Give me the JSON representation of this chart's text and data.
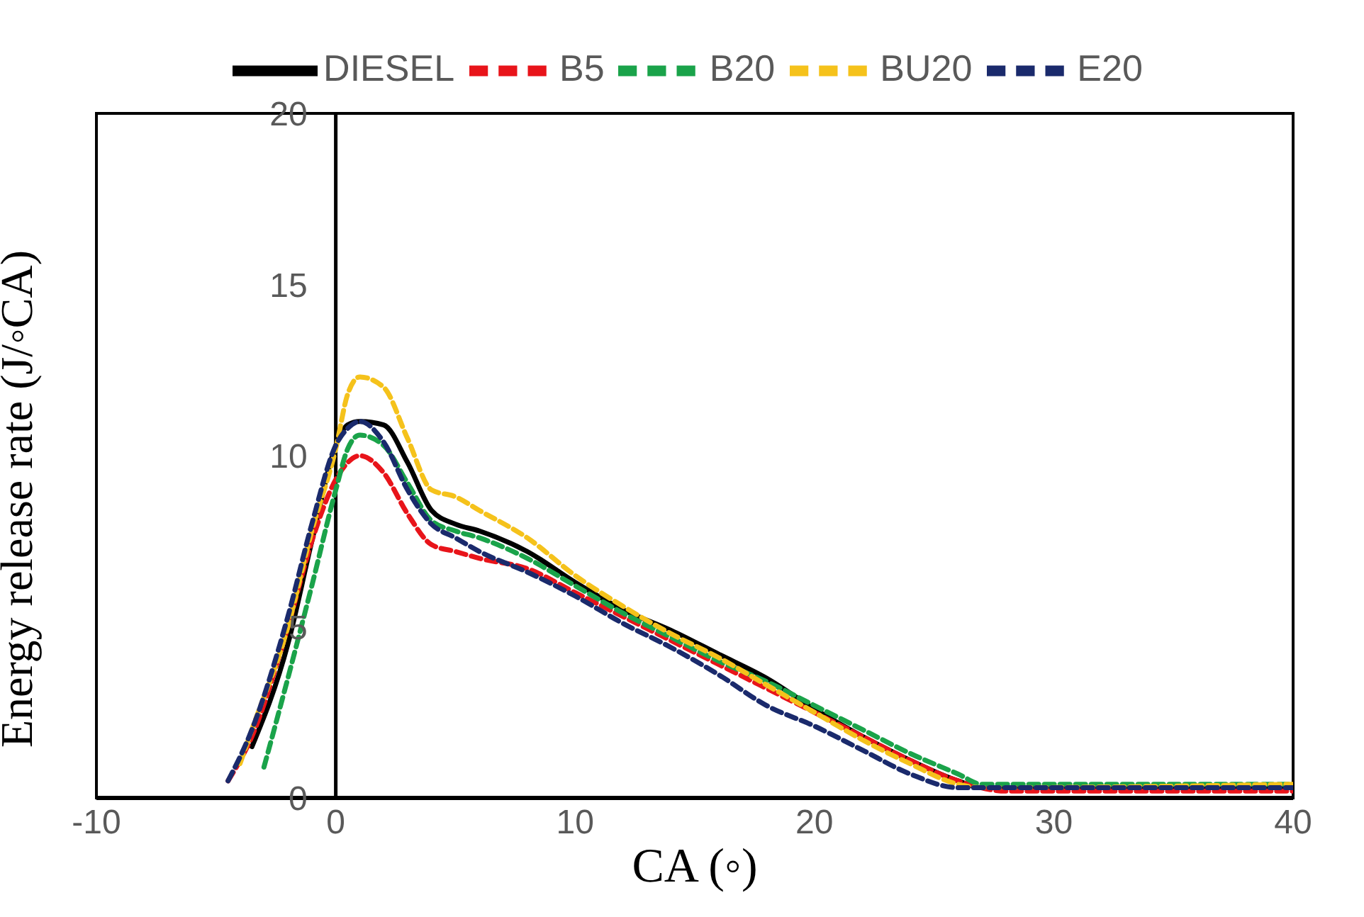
{
  "chart_data": {
    "type": "line",
    "xlabel": "CA (◦)",
    "ylabel": "Energy release rate (J/◦CA)",
    "xlim": [
      -10,
      40
    ],
    "xticks": [
      -10,
      0,
      10,
      20,
      30,
      40
    ],
    "ylim": [
      0,
      20
    ],
    "yticks": [
      0,
      5,
      10,
      15,
      20
    ],
    "grid": false,
    "legend": "top",
    "marker": "none",
    "series": [
      {
        "name": "DIESEL",
        "color": "#000000",
        "line_style": "solid",
        "x": [
          -3.5,
          -2,
          -1,
          0,
          0.5,
          1,
          2,
          3,
          4,
          5,
          6,
          8,
          10,
          12,
          14,
          16,
          18,
          20,
          22,
          24,
          26,
          27,
          30,
          40
        ],
        "values": [
          1.5,
          4.5,
          7.5,
          10.3,
          10.9,
          11.0,
          10.9,
          9.8,
          8.4,
          8.0,
          7.8,
          7.2,
          6.3,
          5.5,
          4.9,
          4.2,
          3.5,
          2.6,
          1.8,
          1.1,
          0.5,
          0.3,
          0.3,
          0.3
        ]
      },
      {
        "name": "B5",
        "color": "#e8141a",
        "line_style": "dashed",
        "x": [
          -4.5,
          -3.5,
          -2,
          -1,
          0,
          0.5,
          1,
          2,
          3,
          4,
          5,
          6,
          8,
          10,
          12,
          14,
          16,
          18,
          20,
          22,
          24,
          26,
          28,
          40
        ],
        "values": [
          0.5,
          1.8,
          5,
          7.5,
          9.3,
          9.8,
          10.0,
          9.5,
          8.3,
          7.4,
          7.2,
          7.0,
          6.7,
          6.0,
          5.3,
          4.6,
          3.9,
          3.2,
          2.5,
          1.8,
          1.1,
          0.5,
          0.2,
          0.2
        ]
      },
      {
        "name": "B20",
        "color": "#1aa34a",
        "line_style": "dashed",
        "x": [
          -3,
          -2,
          -1,
          0,
          0.5,
          1,
          2,
          3,
          4,
          5,
          6,
          8,
          10,
          12,
          14,
          16,
          18,
          20,
          22,
          24,
          26,
          27,
          40
        ],
        "values": [
          0.9,
          3.5,
          6.2,
          9.0,
          10.2,
          10.6,
          10.3,
          9.2,
          8.1,
          7.8,
          7.6,
          7.0,
          6.2,
          5.4,
          4.7,
          4.0,
          3.4,
          2.7,
          2.0,
          1.3,
          0.7,
          0.4,
          0.4
        ]
      },
      {
        "name": "BU20",
        "color": "#f5c21b",
        "line_style": "dashed",
        "x": [
          -4.0,
          -3.5,
          -2,
          -1,
          0,
          0.5,
          1,
          2,
          3,
          4,
          5,
          6,
          8,
          10,
          12,
          14,
          16,
          18,
          20,
          22,
          24,
          26,
          27,
          40
        ],
        "values": [
          1.0,
          2.0,
          5,
          7.8,
          10.2,
          11.8,
          12.3,
          12.0,
          10.5,
          9.0,
          8.8,
          8.4,
          7.6,
          6.5,
          5.6,
          4.8,
          4.1,
          3.3,
          2.5,
          1.7,
          1.0,
          0.4,
          0.3,
          0.4
        ]
      },
      {
        "name": "E20",
        "color": "#1a2a6c",
        "line_style": "dashed",
        "x": [
          -4.5,
          -3.5,
          -2,
          -1,
          0,
          0.5,
          1,
          2,
          3,
          4,
          5,
          6,
          8,
          10,
          12,
          14,
          16,
          18,
          20,
          22,
          24,
          26,
          40
        ],
        "values": [
          0.5,
          2.0,
          5.3,
          8.0,
          10.3,
          10.8,
          11.0,
          10.4,
          9.0,
          8.0,
          7.6,
          7.2,
          6.6,
          5.9,
          5.1,
          4.4,
          3.6,
          2.7,
          2.1,
          1.4,
          0.7,
          0.3,
          0.3
        ]
      }
    ]
  }
}
